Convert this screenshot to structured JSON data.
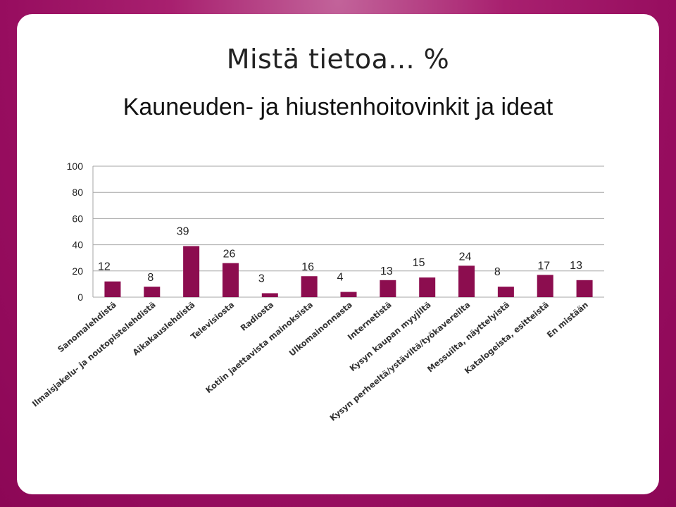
{
  "colors": {
    "background": "#970d5f",
    "panel": "#ffffff",
    "bar": "#8c0d4f",
    "gridline": "#a6a6a6"
  },
  "heading": "Mistä tietoa... %",
  "chart_data": {
    "type": "bar",
    "title": "Kauneuden- ja hiustenhoitovinkit ja ideat",
    "categories": [
      "Sanomalehdistä",
      "Ilmaisjakelu- ja noutopistelehdistä",
      "Aikakauslehdistä",
      "Televisiosta",
      "Radiosta",
      "Kotiin jaettavista mainoksista",
      "Ulkomainonnasta",
      "Internetistä",
      "Kysyn kaupan myyjiltä",
      "Kysyn perheeltä/ystäviltä/työkavereilta",
      "Messuilta, näyttelyistä",
      "Katalogeista, esitteistä",
      "En mistään"
    ],
    "values": [
      12,
      8,
      39,
      26,
      3,
      16,
      4,
      13,
      15,
      24,
      8,
      17,
      13
    ],
    "data_labels": [
      "12",
      "8",
      "39",
      "26",
      "3",
      "16",
      "4",
      "13",
      "15",
      "24",
      "8",
      "17",
      "13"
    ],
    "ylim": [
      0,
      100
    ],
    "yticks": [
      0,
      20,
      40,
      60,
      80,
      100
    ],
    "ytick_labels": [
      "0",
      "20",
      "40",
      "60",
      "80",
      "100"
    ],
    "grid": true,
    "legend": "none",
    "xlabel": "",
    "ylabel": ""
  }
}
